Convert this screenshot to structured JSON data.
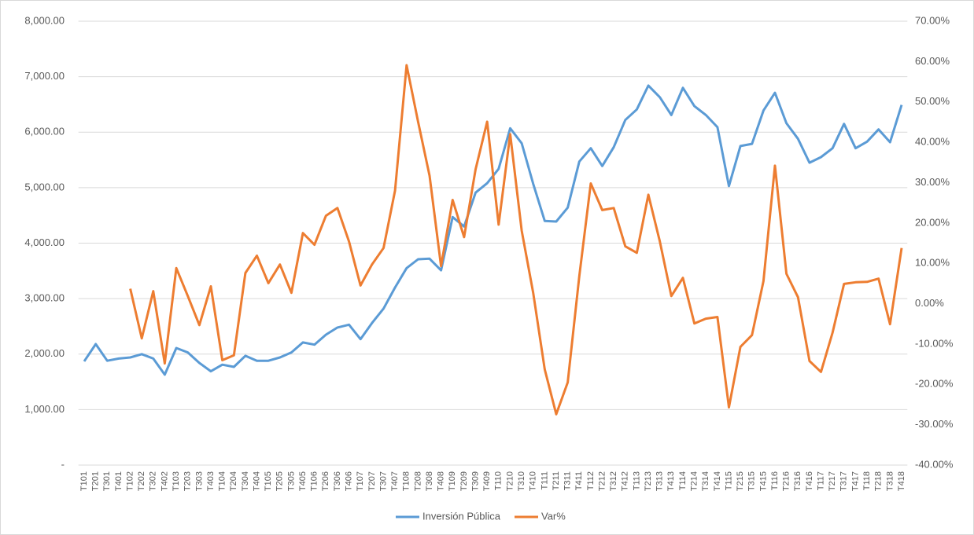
{
  "chart_data": {
    "type": "line",
    "categories": [
      "T101",
      "T201",
      "T301",
      "T401",
      "T102",
      "T202",
      "T302",
      "T402",
      "T103",
      "T203",
      "T303",
      "T403",
      "T104",
      "T204",
      "T304",
      "T404",
      "T105",
      "T205",
      "T305",
      "T405",
      "T106",
      "T206",
      "T306",
      "T406",
      "T107",
      "T207",
      "T307",
      "T407",
      "T108",
      "T208",
      "T308",
      "T408",
      "T109",
      "T209",
      "T309",
      "T409",
      "T110",
      "T210",
      "T310",
      "T410",
      "T111",
      "T211",
      "T311",
      "T411",
      "T112",
      "T212",
      "T312",
      "T412",
      "T113",
      "T213",
      "T313",
      "T413",
      "T114",
      "T214",
      "T314",
      "T414",
      "T115",
      "T215",
      "T315",
      "T415",
      "T116",
      "T216",
      "T316",
      "T416",
      "T117",
      "T217",
      "T317",
      "T417",
      "T118",
      "T218",
      "T318",
      "T418"
    ],
    "series": [
      {
        "name": "Inversión Pública",
        "color": "#5b9bd5",
        "values": [
          1870,
          2180,
          1880,
          1920,
          1940,
          2000,
          1920,
          1630,
          2110,
          2030,
          1840,
          1690,
          1810,
          1770,
          1970,
          1880,
          1880,
          1940,
          2030,
          2210,
          2170,
          2350,
          2480,
          2530,
          2270,
          2560,
          2820,
          3200,
          3550,
          3710,
          3720,
          3510,
          4470,
          4300,
          4910,
          5080,
          5340,
          6070,
          5800,
          5070,
          4400,
          4390,
          4640,
          5470,
          5710,
          5390,
          5730,
          6220,
          6410,
          6840,
          6630,
          6310,
          6800,
          6470,
          6310,
          6090,
          5030,
          5750,
          5790,
          6390,
          6710,
          6160,
          5880,
          5450,
          5550,
          5710,
          6150,
          5710,
          5830,
          6050,
          5820,
          6490
        ]
      },
      {
        "name": "Var%",
        "color": "#ed7d31",
        "axis": "y2",
        "values": [
          null,
          null,
          null,
          null,
          3.7,
          -8.6,
          3.1,
          -14.8,
          8.8,
          1.9,
          -5.3,
          4.3,
          -14.0,
          -12.8,
          7.6,
          11.9,
          5.1,
          9.7,
          2.7,
          17.5,
          14.6,
          21.8,
          23.7,
          15.4,
          4.5,
          9.7,
          13.8,
          28.0,
          59.1,
          45.1,
          31.7,
          9.3,
          25.7,
          16.5,
          33.3,
          45.1,
          19.6,
          42.0,
          18.1,
          2.7,
          -16.3,
          -27.4,
          -19.5,
          6.8,
          29.8,
          23.2,
          23.7,
          14.2,
          12.6,
          27.0,
          15.4,
          1.9,
          6.4,
          -4.9,
          -3.7,
          -3.3,
          -25.7,
          -10.7,
          -7.8,
          5.6,
          34.2,
          7.4,
          1.6,
          -14.2,
          -16.9,
          -7.2,
          4.9,
          5.3,
          5.4,
          6.2,
          -5.1,
          13.8
        ]
      }
    ],
    "ylim": [
      0,
      8000
    ],
    "yticks": [
      {
        "value": 0,
        "label": "-"
      },
      {
        "value": 1000,
        "label": "1,000.00"
      },
      {
        "value": 2000,
        "label": "2,000.00"
      },
      {
        "value": 3000,
        "label": "3,000.00"
      },
      {
        "value": 4000,
        "label": "4,000.00"
      },
      {
        "value": 5000,
        "label": "5,000.00"
      },
      {
        "value": 6000,
        "label": "6,000.00"
      },
      {
        "value": 7000,
        "label": "7,000.00"
      },
      {
        "value": 8000,
        "label": "8,000.00"
      }
    ],
    "y2lim": [
      -40,
      70
    ],
    "y2ticks": [
      {
        "value": -40,
        "label": "-40.00%"
      },
      {
        "value": -30,
        "label": "-30.00%"
      },
      {
        "value": -20,
        "label": "-20.00%"
      },
      {
        "value": -10,
        "label": "-10.00%"
      },
      {
        "value": 0,
        "label": "0.00%"
      },
      {
        "value": 10,
        "label": "10.00%"
      },
      {
        "value": 20,
        "label": "20.00%"
      },
      {
        "value": 30,
        "label": "30.00%"
      },
      {
        "value": 40,
        "label": "40.00%"
      },
      {
        "value": 50,
        "label": "50.00%"
      },
      {
        "value": 60,
        "label": "60.00%"
      },
      {
        "value": 70,
        "label": "70.00%"
      }
    ],
    "grid": true,
    "legend": "bottom"
  }
}
